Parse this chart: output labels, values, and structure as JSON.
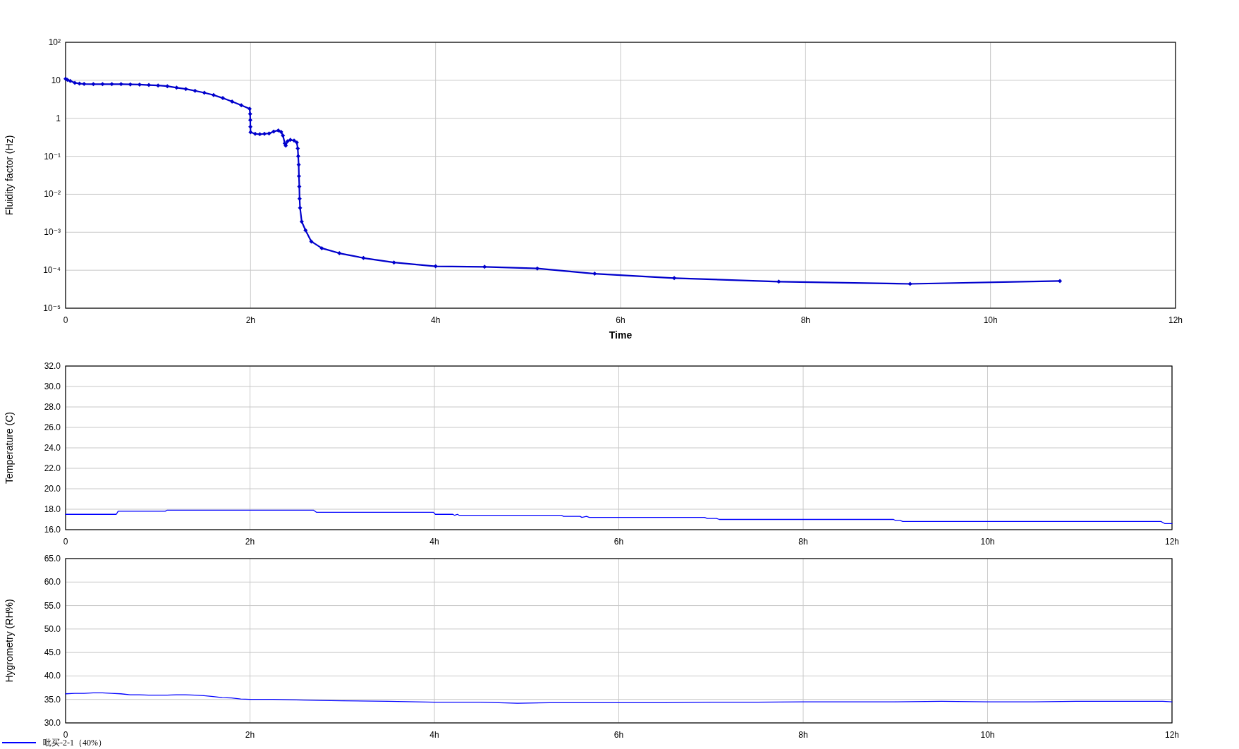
{
  "chart_data": [
    {
      "type": "line",
      "ylabel": "Fluidity factor (Hz)",
      "xlabel": "Time",
      "log": "y",
      "grid": true,
      "marker": "diamond",
      "xlim": [
        0,
        12
      ],
      "xticks": [
        {
          "value": 0,
          "label": "0"
        },
        {
          "value": 2,
          "label": "2h"
        },
        {
          "value": 4,
          "label": "4h"
        },
        {
          "value": 6,
          "label": "6h"
        },
        {
          "value": 8,
          "label": "8h"
        },
        {
          "value": 10,
          "label": "10h"
        },
        {
          "value": 12,
          "label": "12h"
        }
      ],
      "ylim": [
        1e-05,
        100
      ],
      "yticks": [
        {
          "value": 100,
          "label": "10²"
        },
        10,
        1,
        {
          "value": 0.1,
          "label": "10⁻¹"
        },
        {
          "value": 0.01,
          "label": "10⁻²"
        },
        {
          "value": 0.001,
          "label": "10⁻³"
        },
        {
          "value": 0.0001,
          "label": "10⁻⁴"
        },
        {
          "value": 1e-05,
          "label": "10⁻⁵"
        }
      ],
      "series": [
        {
          "color": "#0000cc",
          "x": [
            0,
            0.02,
            0.05,
            0.1,
            0.15,
            0.2,
            0.3,
            0.4,
            0.5,
            0.6,
            0.7,
            0.8,
            0.9,
            1.0,
            1.1,
            1.2,
            1.3,
            1.4,
            1.5,
            1.6,
            1.7,
            1.8,
            1.9,
            1.99,
            1.995,
            1.997,
            1.998,
            2.0,
            2.05,
            2.1,
            2.15,
            2.2,
            2.25,
            2.3,
            2.33,
            2.35,
            2.37,
            2.38,
            2.4,
            2.43,
            2.47,
            2.5,
            2.51,
            2.515,
            2.52,
            2.523,
            2.527,
            2.53,
            2.535,
            2.553,
            2.594,
            2.657,
            2.77,
            2.96,
            3.22,
            3.55,
            4.0,
            4.53,
            5.1,
            5.72,
            6.58,
            7.71,
            9.13,
            10.75
          ],
          "values": [
            11,
            10.3,
            9.6,
            8.6,
            8.2,
            8.0,
            7.9,
            7.9,
            7.9,
            7.9,
            7.8,
            7.7,
            7.5,
            7.3,
            7.0,
            6.4,
            5.9,
            5.3,
            4.7,
            4.1,
            3.4,
            2.76,
            2.2,
            1.77,
            1.3,
            0.9,
            0.6,
            0.43,
            0.39,
            0.38,
            0.39,
            0.4,
            0.45,
            0.48,
            0.44,
            0.35,
            0.22,
            0.19,
            0.25,
            0.27,
            0.26,
            0.23,
            0.16,
            0.1,
            0.06,
            0.03,
            0.016,
            0.0076,
            0.0044,
            0.0019,
            0.00113,
            0.00057,
            0.00038,
            0.00028,
            0.00021,
            0.00016,
            0.000127,
            0.000123,
            0.000111,
            8.1e-05,
            6.2e-05,
            5e-05,
            4.37e-05,
            5.2e-05
          ]
        }
      ]
    },
    {
      "type": "line",
      "ylabel": "Temperature (C)",
      "grid": true,
      "xlim": [
        0,
        12
      ],
      "xticks": [
        {
          "value": 0,
          "label": "0"
        },
        {
          "value": 2,
          "label": "2h"
        },
        {
          "value": 4,
          "label": "4h"
        },
        {
          "value": 6,
          "label": "6h"
        },
        {
          "value": 8,
          "label": "8h"
        },
        {
          "value": 10,
          "label": "10h"
        },
        {
          "value": 12,
          "label": "12h"
        }
      ],
      "ylim": [
        16,
        32
      ],
      "yticks": [
        {
          "value": 16,
          "label": "16.0"
        },
        {
          "value": 18,
          "label": "18.0"
        },
        {
          "value": 20,
          "label": "20.0"
        },
        {
          "value": 22,
          "label": "22.0"
        },
        {
          "value": 24,
          "label": "24.0"
        },
        {
          "value": 26,
          "label": "26.0"
        },
        {
          "value": 28,
          "label": "28.0"
        },
        {
          "value": 30,
          "label": "30.0"
        },
        {
          "value": 32,
          "label": "32.0"
        }
      ],
      "series": [
        {
          "color": "#0000ff",
          "x": [
            0,
            0.55,
            0.57,
            1.08,
            1.1,
            2.69,
            2.72,
            3.99,
            4.01,
            4.2,
            4.22,
            4.25,
            4.27,
            5.38,
            5.4,
            5.58,
            5.6,
            5.65,
            5.68,
            6.93,
            6.96,
            7.06,
            7.09,
            8.98,
            9.0,
            9.05,
            9.08,
            11.88,
            11.92,
            12
          ],
          "values": [
            17.5,
            17.5,
            17.8,
            17.8,
            17.9,
            17.9,
            17.7,
            17.7,
            17.5,
            17.5,
            17.4,
            17.5,
            17.4,
            17.4,
            17.3,
            17.3,
            17.2,
            17.3,
            17.2,
            17.2,
            17.1,
            17.1,
            17.0,
            17.0,
            16.9,
            16.9,
            16.8,
            16.8,
            16.6,
            16.6
          ]
        }
      ]
    },
    {
      "type": "line",
      "ylabel": "Hygrometry (RH%)",
      "grid": true,
      "legend": "bottom left",
      "xlim": [
        0,
        12
      ],
      "xticks": [
        {
          "value": 0,
          "label": "0"
        },
        {
          "value": 2,
          "label": "2h"
        },
        {
          "value": 4,
          "label": "4h"
        },
        {
          "value": 6,
          "label": "6h"
        },
        {
          "value": 8,
          "label": "8h"
        },
        {
          "value": 10,
          "label": "10h"
        },
        {
          "value": 12,
          "label": "12h"
        }
      ],
      "ylim": [
        30,
        65
      ],
      "yticks": [
        {
          "value": 30,
          "label": "30.0"
        },
        {
          "value": 35,
          "label": "35.0"
        },
        {
          "value": 40,
          "label": "40.0"
        },
        {
          "value": 45,
          "label": "45.0"
        },
        {
          "value": 50,
          "label": "50.0"
        },
        {
          "value": 55,
          "label": "55.0"
        },
        {
          "value": 60,
          "label": "60.0"
        },
        {
          "value": 65,
          "label": "65.0"
        }
      ],
      "series": [
        {
          "name": "吡买-2-1（40%）",
          "color": "#0000ff",
          "x": [
            0,
            0.1,
            0.2,
            0.3,
            0.4,
            0.5,
            0.6,
            0.7,
            0.8,
            0.9,
            1.0,
            1.1,
            1.2,
            1.3,
            1.4,
            1.5,
            1.6,
            1.7,
            1.8,
            1.9,
            2.0,
            2.25,
            2.5,
            2.75,
            3.0,
            3.5,
            4.0,
            4.5,
            4.9,
            5.25,
            5.5,
            6.0,
            6.5,
            7.0,
            7.5,
            8.0,
            8.5,
            9.0,
            9.5,
            10.0,
            10.5,
            11.0,
            11.5,
            11.9,
            12
          ],
          "values": [
            36.2,
            36.3,
            36.3,
            36.4,
            36.4,
            36.3,
            36.2,
            36.0,
            36.0,
            35.9,
            35.9,
            35.9,
            36.0,
            36.0,
            35.9,
            35.8,
            35.6,
            35.4,
            35.3,
            35.1,
            35.0,
            35.0,
            34.9,
            34.8,
            34.7,
            34.6,
            34.4,
            34.4,
            34.2,
            34.3,
            34.3,
            34.3,
            34.3,
            34.4,
            34.4,
            34.5,
            34.5,
            34.5,
            34.6,
            34.5,
            34.5,
            34.6,
            34.6,
            34.6,
            34.5
          ]
        }
      ]
    }
  ]
}
